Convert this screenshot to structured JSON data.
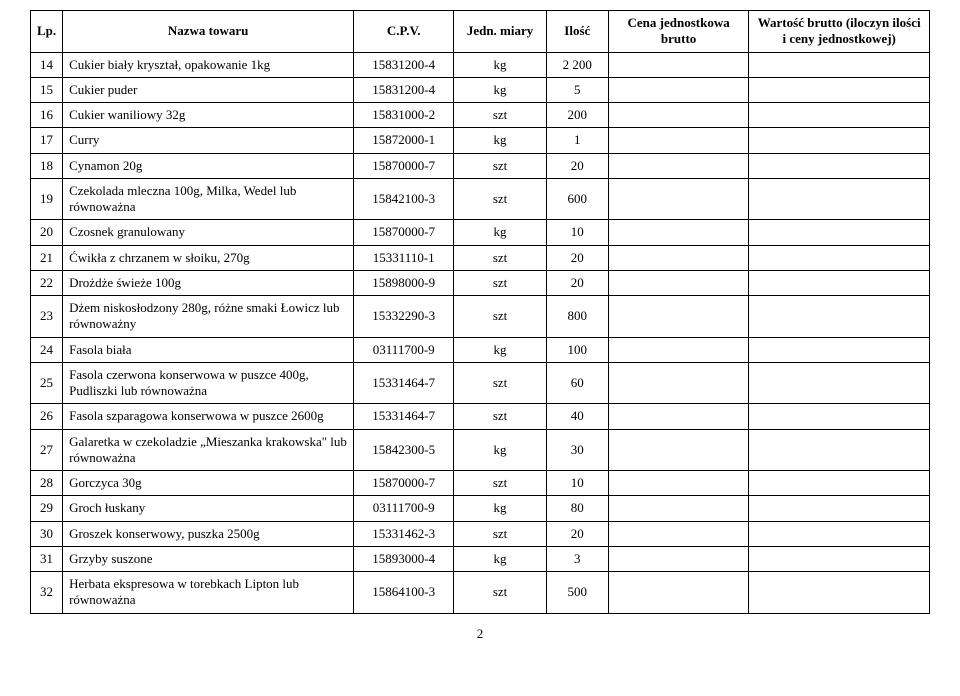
{
  "table": {
    "headers": {
      "lp": "Lp.",
      "name": "Nazwa towaru",
      "cpv": "C.P.V.",
      "jedn": "Jedn. miary",
      "ilosc": "Ilość",
      "cena": "Cena jednostkowa brutto",
      "wart": "Wartość brutto (iloczyn ilości i ceny jednostkowej)"
    },
    "rows": [
      {
        "lp": "14",
        "name": "Cukier biały kryształ, opakowanie 1kg",
        "cpv": "15831200-4",
        "jedn": "kg",
        "ilosc": "2 200"
      },
      {
        "lp": "15",
        "name": "Cukier puder",
        "cpv": "15831200-4",
        "jedn": "kg",
        "ilosc": "5"
      },
      {
        "lp": "16",
        "name": "Cukier waniliowy 32g",
        "cpv": "15831000-2",
        "jedn": "szt",
        "ilosc": "200"
      },
      {
        "lp": "17",
        "name": "Curry",
        "cpv": "15872000-1",
        "jedn": "kg",
        "ilosc": "1"
      },
      {
        "lp": "18",
        "name": "Cynamon 20g",
        "cpv": "15870000-7",
        "jedn": "szt",
        "ilosc": "20"
      },
      {
        "lp": "19",
        "name": "Czekolada mleczna 100g, Milka, Wedel lub równoważna",
        "cpv": "15842100-3",
        "jedn": "szt",
        "ilosc": "600"
      },
      {
        "lp": "20",
        "name": "Czosnek granulowany",
        "cpv": "15870000-7",
        "jedn": "kg",
        "ilosc": "10"
      },
      {
        "lp": "21",
        "name": "Ćwikła z chrzanem w słoiku, 270g",
        "cpv": "15331110-1",
        "jedn": "szt",
        "ilosc": "20"
      },
      {
        "lp": "22",
        "name": "Drożdże świeże 100g",
        "cpv": "15898000-9",
        "jedn": "szt",
        "ilosc": "20"
      },
      {
        "lp": "23",
        "name": "Dżem niskosłodzony 280g, różne smaki Łowicz lub równoważny",
        "cpv": "15332290-3",
        "jedn": "szt",
        "ilosc": "800"
      },
      {
        "lp": "24",
        "name": "Fasola biała",
        "cpv": "03111700-9",
        "jedn": "kg",
        "ilosc": "100"
      },
      {
        "lp": "25",
        "name": "Fasola czerwona konserwowa w puszce 400g, Pudliszki lub równoważna",
        "cpv": "15331464-7",
        "jedn": "szt",
        "ilosc": "60"
      },
      {
        "lp": "26",
        "name": "Fasola szparagowa konserwowa w puszce 2600g",
        "cpv": "15331464-7",
        "jedn": "szt",
        "ilosc": "40"
      },
      {
        "lp": "27",
        "name": "Galaretka w czekoladzie „Mieszanka krakowska\" lub równoważna",
        "cpv": "15842300-5",
        "jedn": "kg",
        "ilosc": "30"
      },
      {
        "lp": "28",
        "name": "Gorczyca 30g",
        "cpv": "15870000-7",
        "jedn": "szt",
        "ilosc": "10"
      },
      {
        "lp": "29",
        "name": "Groch łuskany",
        "cpv": "03111700-9",
        "jedn": "kg",
        "ilosc": "80"
      },
      {
        "lp": "30",
        "name": "Groszek konserwowy, puszka 2500g",
        "cpv": "15331462-3",
        "jedn": "szt",
        "ilosc": "20"
      },
      {
        "lp": "31",
        "name": "Grzyby suszone",
        "cpv": "15893000-4",
        "jedn": "kg",
        "ilosc": "3"
      },
      {
        "lp": "32",
        "name": "Herbata ekspresowa w torebkach Lipton lub równoważna",
        "cpv": "15864100-3",
        "jedn": "szt",
        "ilosc": "500"
      }
    ]
  },
  "page_number": "2"
}
